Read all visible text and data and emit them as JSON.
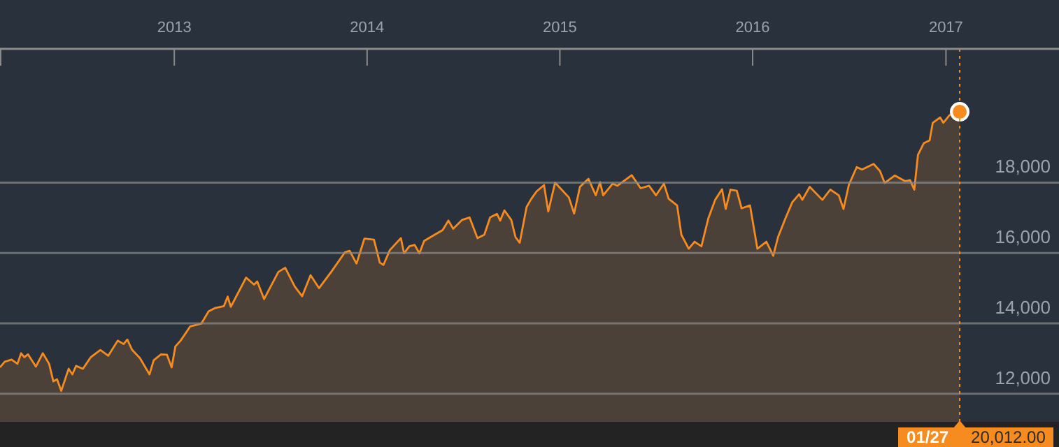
{
  "chart_data": {
    "type": "area",
    "xlim": [
      "2012-02-06",
      "2017-08-03"
    ],
    "ylim": [
      11200,
      21800
    ],
    "xticks": [
      "2013",
      "2014",
      "2015",
      "2016",
      "2017"
    ],
    "yticks": [
      {
        "value": 12000,
        "label": "12,000"
      },
      {
        "value": 14000,
        "label": "14,000"
      },
      {
        "value": 16000,
        "label": "16,000"
      },
      {
        "value": 18000,
        "label": "18,000"
      }
    ],
    "grid": "y",
    "ref_lines": [
      {
        "axis": "x",
        "value": "2017-01-27",
        "color": "#f68b1f",
        "line_style": "dotted"
      }
    ],
    "annotations": [
      "01/27",
      "20,012.00"
    ],
    "series": [
      {
        "color": "#f68b1f",
        "x": [
          "2012-02-06",
          "2012-02-15",
          "2012-02-28",
          "2012-03-10",
          "2012-03-17",
          "2012-03-23",
          "2012-03-30",
          "2012-04-14",
          "2012-04-27",
          "2012-05-09",
          "2012-05-17",
          "2012-05-24",
          "2012-06-01",
          "2012-06-15",
          "2012-06-22",
          "2012-06-29",
          "2012-07-12",
          "2012-07-27",
          "2012-08-14",
          "2012-08-29",
          "2012-09-16",
          "2012-09-27",
          "2012-10-04",
          "2012-10-13",
          "2012-10-28",
          "2012-11-15",
          "2012-11-23",
          "2012-12-07",
          "2012-12-18",
          "2012-12-27",
          "2013-01-03",
          "2013-01-13",
          "2013-01-31",
          "2013-02-21",
          "2013-03-07",
          "2013-03-20",
          "2013-04-05",
          "2013-04-12",
          "2013-04-18",
          "2013-05-17",
          "2013-06-01",
          "2013-06-07",
          "2013-06-20",
          "2013-07-17",
          "2013-07-30",
          "2013-08-17",
          "2013-08-31",
          "2013-09-16",
          "2013-10-02",
          "2013-10-25",
          "2013-11-20",
          "2013-11-29",
          "2013-12-12",
          "2013-12-27",
          "2014-01-14",
          "2014-01-25",
          "2014-02-01",
          "2014-02-13",
          "2014-03-06",
          "2014-03-12",
          "2014-03-22",
          "2014-04-01",
          "2014-04-10",
          "2014-04-19",
          "2014-05-09",
          "2014-05-24",
          "2014-06-04",
          "2014-06-13",
          "2014-06-30",
          "2014-07-14",
          "2014-07-29",
          "2014-08-11",
          "2014-08-22",
          "2014-09-04",
          "2014-09-10",
          "2014-09-18",
          "2014-10-01",
          "2014-10-09",
          "2014-10-17",
          "2014-10-30",
          "2014-11-08",
          "2014-11-18",
          "2014-12-02",
          "2014-12-10",
          "2014-12-23",
          "2015-01-18",
          "2015-01-28",
          "2015-02-08",
          "2015-02-24",
          "2015-03-10",
          "2015-03-18",
          "2015-03-24",
          "2015-04-11",
          "2015-04-20",
          "2015-05-17",
          "2015-06-03",
          "2015-06-19",
          "2015-07-02",
          "2015-07-17",
          "2015-07-26",
          "2015-08-11",
          "2015-08-19",
          "2015-09-02",
          "2015-09-13",
          "2015-09-26",
          "2015-10-09",
          "2015-10-22",
          "2015-11-04",
          "2015-11-11",
          "2015-11-20",
          "2015-12-02",
          "2015-12-11",
          "2015-12-27",
          "2016-01-10",
          "2016-01-27",
          "2016-02-09",
          "2016-02-18",
          "2016-03-03",
          "2016-03-16",
          "2016-03-29",
          "2016-04-04",
          "2016-04-18",
          "2016-05-12",
          "2016-05-27",
          "2016-06-12",
          "2016-06-21",
          "2016-07-01",
          "2016-07-16",
          "2016-07-26",
          "2016-08-17",
          "2016-08-29",
          "2016-09-07",
          "2016-09-26",
          "2016-10-16",
          "2016-10-25",
          "2016-11-02",
          "2016-11-09",
          "2016-11-20",
          "2016-12-01",
          "2016-12-07",
          "2016-12-21",
          "2016-12-27",
          "2017-01-08",
          "2017-01-27"
        ],
        "values": [
          12750,
          12910,
          12970,
          12850,
          13150,
          13040,
          13120,
          12770,
          13150,
          12850,
          12350,
          12410,
          12080,
          12710,
          12550,
          12790,
          12710,
          13040,
          13240,
          13080,
          13510,
          13410,
          13540,
          13250,
          13010,
          12550,
          12950,
          13120,
          13110,
          12750,
          13340,
          13510,
          13910,
          13990,
          14340,
          14440,
          14490,
          14760,
          14470,
          15300,
          15100,
          15190,
          14690,
          15460,
          15580,
          15050,
          14770,
          15370,
          15000,
          15460,
          16020,
          16060,
          15700,
          16410,
          16380,
          15730,
          15660,
          16080,
          16420,
          15990,
          16190,
          16230,
          15990,
          16340,
          16520,
          16650,
          16920,
          16690,
          16940,
          17010,
          16420,
          16520,
          17010,
          17110,
          16920,
          17210,
          16940,
          16450,
          16290,
          17310,
          17540,
          17750,
          17930,
          17180,
          18000,
          17580,
          17120,
          17880,
          18110,
          17640,
          18010,
          17640,
          17970,
          17910,
          18210,
          17840,
          17910,
          17640,
          17970,
          17540,
          17350,
          16520,
          16120,
          16320,
          16190,
          16980,
          17510,
          17810,
          17250,
          17800,
          17770,
          17270,
          17350,
          16120,
          16320,
          15920,
          16450,
          16980,
          17440,
          17670,
          17510,
          17880,
          17510,
          17800,
          17640,
          17250,
          17930,
          18440,
          18370,
          18530,
          18330,
          17990,
          18200,
          18040,
          18070,
          17800,
          18790,
          19120,
          19200,
          19700,
          19850,
          19700,
          19920,
          20012
        ]
      },
      {
        "type": "scatter",
        "color": "#f68b1f",
        "marker": "circle",
        "x": [
          "2017-01-27"
        ],
        "values": [
          20012
        ]
      }
    ]
  }
}
